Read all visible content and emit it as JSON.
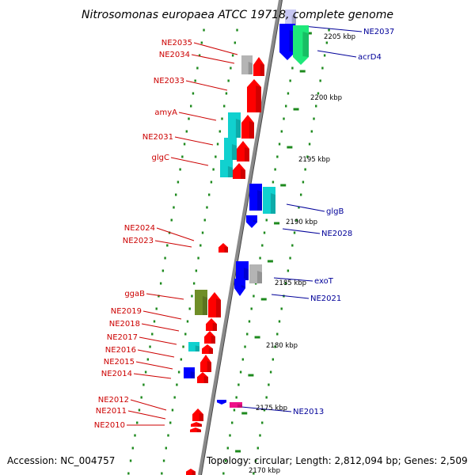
{
  "title": "Nitrosomonas europaea ATCC 19718, complete genome",
  "footer": {
    "accession": "Accession: NC_004757",
    "summary": "Topology: circular; Length: 2,812,094 bp; Genes: 2,509"
  },
  "colors": {
    "forward": "#ff0000",
    "reverse": "#0000ff",
    "cyan": "#11d1cf",
    "gray": "#b4b4b4",
    "olive": "#6f8e28",
    "magenta": "#ee1188",
    "tick": "#1e8a1e",
    "backbone": "#8a8a8a",
    "label_left": "#cc0000",
    "label_right": "#000099"
  },
  "scale_labels": [
    "2205 kbp",
    "2200 kbp",
    "2195 kbp",
    "2190 kbp",
    "2185 kbp",
    "2180 kbp",
    "2175 kbp",
    "2170 kbp"
  ],
  "left_labels": [
    "NE2035",
    "NE2034",
    "NE2033",
    "amyA",
    "NE2031",
    "glgC",
    "NE2024",
    "NE2023",
    "ggaB",
    "NE2019",
    "NE2018",
    "NE2017",
    "NE2016",
    "NE2015",
    "NE2014",
    "NE2012",
    "NE2011",
    "NE2010"
  ],
  "right_labels": [
    "NE2037",
    "acrD4",
    "glgB",
    "NE2028",
    "exoT",
    "NE2021",
    "NE2013"
  ]
}
